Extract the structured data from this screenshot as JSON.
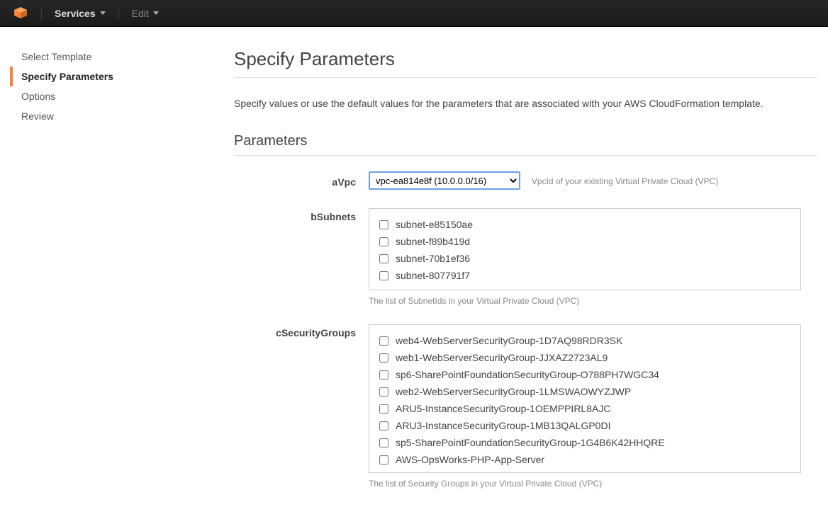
{
  "topnav": {
    "services_label": "Services",
    "edit_label": "Edit"
  },
  "sidebar": {
    "steps": [
      {
        "label": "Select Template",
        "active": false
      },
      {
        "label": "Specify Parameters",
        "active": true
      },
      {
        "label": "Options",
        "active": false
      },
      {
        "label": "Review",
        "active": false
      }
    ]
  },
  "page": {
    "title": "Specify Parameters",
    "intro": "Specify values or use the default values for the parameters that are associated with your AWS CloudFormation template.",
    "section_title": "Parameters"
  },
  "params": {
    "aVpc": {
      "label": "aVpc",
      "selected": "vpc-ea814e8f (10.0.0.0/16)",
      "hint": "VpcId of your existing Virtual Private Cloud (VPC)"
    },
    "bSubnets": {
      "label": "bSubnets",
      "options": [
        "subnet-e85150ae",
        "subnet-f89b419d",
        "subnet-70b1ef36",
        "subnet-807791f7"
      ],
      "hint": "The list of SubnetIds in your Virtual Private Cloud (VPC)"
    },
    "cSecurityGroups": {
      "label": "cSecurityGroups",
      "options": [
        "web4-WebServerSecurityGroup-1D7AQ98RDR3SK",
        "web1-WebServerSecurityGroup-JJXAZ2723AL9",
        "sp6-SharePointFoundationSecurityGroup-O788PH7WGC34",
        "web2-WebServerSecurityGroup-1LMSWAOWYZJWP",
        "ARU5-InstanceSecurityGroup-1OEMPPIRL8AJC",
        "ARU3-InstanceSecurityGroup-1MB13QALGP0DI",
        "sp5-SharePointFoundationSecurityGroup-1G4B6K42HHQRE",
        "AWS-OpsWorks-PHP-App-Server"
      ],
      "hint": "The list of Security Groups in your Virtual Private Cloud (VPC)"
    }
  },
  "colors": {
    "accent_orange": "#f58536",
    "focus_blue": "#6ca0e8"
  }
}
